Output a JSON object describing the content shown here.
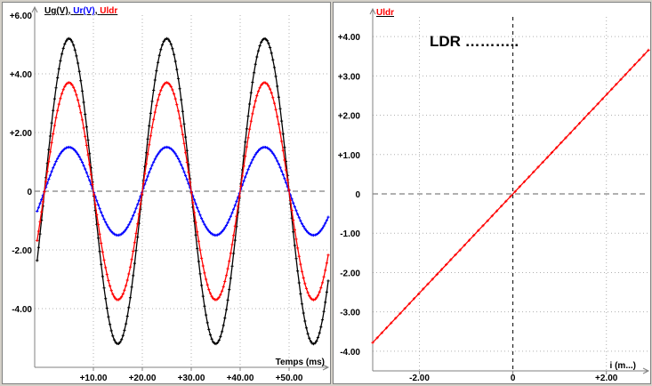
{
  "chart_data": [
    {
      "type": "line",
      "title": "",
      "legend": [
        {
          "label": "Ug(V)",
          "color": "#000000"
        },
        {
          "label": "Ur(V)",
          "color": "#0000ff"
        },
        {
          "label": "Uldr",
          "color": "#ff0000"
        }
      ],
      "legend_separator": ",",
      "xlabel": "Temps (ms)",
      "ylabel": "",
      "xlim": [
        -2,
        58
      ],
      "ylim": [
        -6.0,
        6.0
      ],
      "x_ticks": [
        10,
        20,
        30,
        40,
        50
      ],
      "x_tick_labels": [
        "+10.00",
        "+20.00",
        "+30.00",
        "+40.00",
        "+50.00"
      ],
      "y_ticks": [
        6,
        4,
        2,
        0,
        -2,
        -4
      ],
      "y_tick_labels": [
        "+6.00",
        "+4.00",
        "+2.00",
        "0",
        "-2.00",
        "-4.00"
      ],
      "x_start": -1.5,
      "x_end": 58,
      "period_ms": 20,
      "series": [
        {
          "name": "Ug(V)",
          "color": "#000000",
          "amplitude": 5.2,
          "peak_at_ms": 5,
          "marker": "plus"
        },
        {
          "name": "Ur(V)",
          "color": "#0000ff",
          "amplitude": 1.5,
          "peak_at_ms": 5,
          "marker": "plus"
        },
        {
          "name": "Uldr",
          "color": "#ff0000",
          "amplitude": 3.7,
          "peak_at_ms": 5,
          "marker": "plus"
        }
      ],
      "grid": "dotted",
      "zero_line": "dashed"
    },
    {
      "type": "line",
      "title": "LDR ………..",
      "legend": [
        {
          "label": "Uldr",
          "color": "#ff0000"
        }
      ],
      "xlabel": "i (m...)",
      "ylabel": "",
      "xlim": [
        -3.0,
        2.9
      ],
      "ylim": [
        -4.5,
        4.5
      ],
      "x_ticks": [
        -2,
        0,
        2
      ],
      "x_tick_labels": [
        "-2.00",
        "0",
        "+2.00"
      ],
      "y_ticks": [
        4,
        3,
        2,
        1,
        0,
        -1,
        -2,
        -3,
        -4
      ],
      "y_tick_labels": [
        "+4.00",
        "+3.00",
        "+2.00",
        "+1.00",
        "0",
        "-1.00",
        "-2.00",
        "-3.00",
        "-4.00"
      ],
      "series": [
        {
          "name": "Uldr",
          "color": "#ff0000",
          "x_range": [
            -3.0,
            2.9
          ],
          "slope": 1.26,
          "intercept": 0.0,
          "marker": "plus"
        }
      ],
      "grid": "dotted",
      "zero_line": "dashed"
    }
  ]
}
